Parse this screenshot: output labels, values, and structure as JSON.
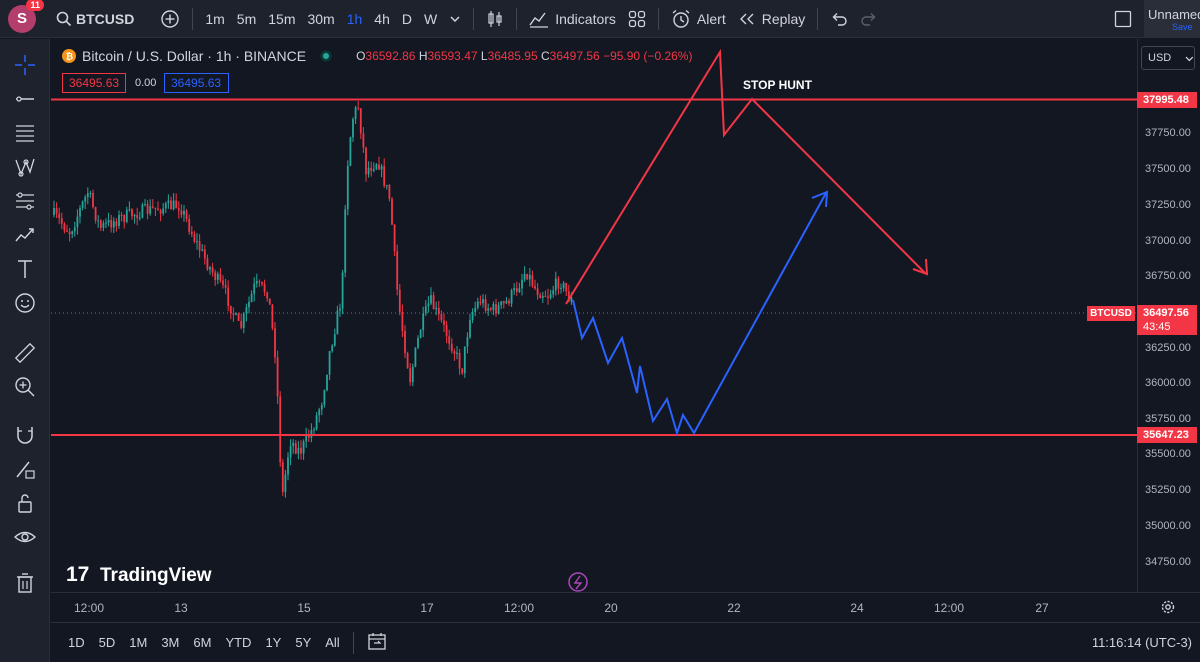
{
  "header": {
    "avatar_letter": "S",
    "notifications": "11",
    "symbol": "BTCUSD",
    "intervals": [
      "1m",
      "5m",
      "15m",
      "30m",
      "1h",
      "4h",
      "D",
      "W"
    ],
    "active_interval": "1h",
    "indicators_label": "Indicators",
    "alert_label": "Alert",
    "replay_label": "Replay",
    "layout_name": "Unnamed",
    "save_label": "Save"
  },
  "legend": {
    "title": "Bitcoin / U.S. Dollar · 1h · BINANCE",
    "open_label": "O",
    "open": "36592.86",
    "high_label": "H",
    "high": "36593.47",
    "low_label": "L",
    "low": "36485.95",
    "close_label": "C",
    "close": "36497.56",
    "change": "−95.90 (−0.26%)",
    "bid": "36495.63",
    "spread": "0.00",
    "ask": "36495.63"
  },
  "annotation": {
    "stop_hunt": "STOP HUNT"
  },
  "watermark": "TradingView",
  "price_axis": {
    "currency": "USD",
    "ticks": [
      "37750.00",
      "37500.00",
      "37250.00",
      "37000.00",
      "36750.00",
      "36250.00",
      "36000.00",
      "35750.00",
      "35500.00",
      "35250.00",
      "35000.00",
      "34750.00"
    ],
    "resistance": "37995.48",
    "support": "35647.23",
    "symbol_tag": "BTCUSD",
    "last_price": "36497.56",
    "countdown": "43:45"
  },
  "time_axis": {
    "ticks": [
      "12:00",
      "13",
      "15",
      "17",
      "12:00",
      "20",
      "22",
      "24",
      "12:00",
      "27"
    ]
  },
  "range_bar": {
    "ranges": [
      "1D",
      "5D",
      "1M",
      "3M",
      "6M",
      "YTD",
      "1Y",
      "5Y",
      "All"
    ],
    "clock": "11:16:14 (UTC-3)"
  },
  "colors": {
    "up": "#26a69a",
    "down": "#f23645",
    "bullish_path": "#2962ff",
    "bearish_path": "#f23645"
  },
  "chart_data": {
    "type": "candlestick",
    "horizontal_levels": [
      37995.48,
      35647.23
    ],
    "last_price": 36497.56,
    "ylim": [
      34625,
      38380
    ]
  }
}
